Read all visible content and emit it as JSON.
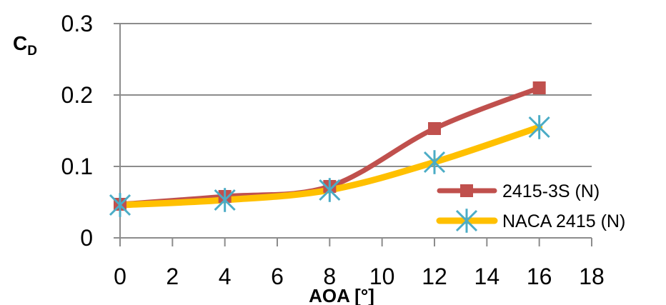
{
  "chart_data": {
    "type": "line",
    "xlabel": "AOA [°]",
    "ylabel": "C",
    "ylabel_subscript": "D",
    "xlim": [
      0,
      18
    ],
    "ylim": [
      0,
      0.3
    ],
    "x_ticks": [
      "0",
      "2",
      "4",
      "6",
      "8",
      "10",
      "12",
      "14",
      "16",
      "18"
    ],
    "y_ticks": [
      "0",
      "0.1",
      "0.2",
      "0.3"
    ],
    "grid": "horizontal",
    "legend_position": "right",
    "x": [
      0,
      4,
      8,
      12,
      16
    ],
    "series": [
      {
        "name": "2415-3S (N)",
        "values": [
          0.047,
          0.058,
          0.072,
          0.153,
          0.21
        ],
        "color": "#c0504d",
        "marker": "square"
      },
      {
        "name": "NACA 2415 (N)",
        "values": [
          0.046,
          0.053,
          0.067,
          0.106,
          0.155
        ],
        "color": "#ffc000",
        "marker_color": "#4bacc6",
        "marker": "star"
      }
    ]
  }
}
